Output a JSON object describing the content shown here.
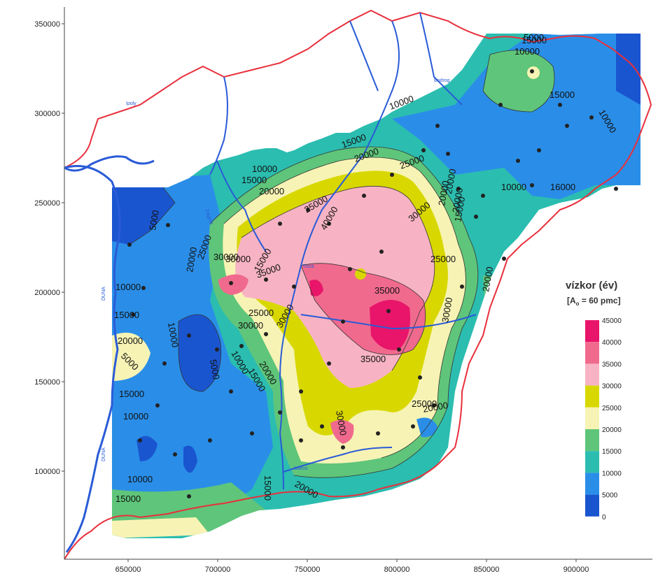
{
  "legend": {
    "title": "vízkor (év)",
    "subtitle_prefix": "[A",
    "subtitle_sub": "o",
    "subtitle_suffix": " = 60 pmc]",
    "classes": [
      {
        "value": "45000",
        "color": "#e8156a"
      },
      {
        "value": "40000",
        "color": "#f06a8e"
      },
      {
        "value": "35000",
        "color": "#f7b3c3"
      },
      {
        "value": "30000",
        "color": "#d8d800"
      },
      {
        "value": "25000",
        "color": "#f7f3b4"
      },
      {
        "value": "20000",
        "color": "#5fc57a"
      },
      {
        "value": "15000",
        "color": "#2bbdb0"
      },
      {
        "value": "10000",
        "color": "#2a8ee8"
      },
      {
        "value": "5000",
        "color": "#1a55d0"
      },
      {
        "value": "0",
        "color": ""
      }
    ]
  },
  "axes": {
    "x_ticks": [
      "650000",
      "700000",
      "750000",
      "800000",
      "850000",
      "900000"
    ],
    "y_ticks": [
      "350000",
      "300000",
      "250000",
      "200000",
      "150000",
      "100000"
    ]
  },
  "contour_labels": [
    "10000",
    "15000",
    "5000",
    "15000",
    "10000",
    "15000",
    "20000",
    "20000",
    "25000",
    "30000",
    "10000",
    "15000",
    "20000",
    "25000",
    "30000",
    "35000",
    "40000",
    "30000",
    "25000",
    "30000",
    "35000",
    "35000",
    "25000",
    "20000",
    "10000",
    "15000",
    "20000",
    "25000",
    "5000",
    "10000",
    "5000",
    "10000",
    "15000",
    "10000",
    "15000",
    "20000",
    "20000",
    "30000",
    "25000",
    "20000",
    "15000",
    "10000",
    "15000",
    "20000",
    "20000",
    "16000",
    "10000",
    "15000",
    "10000",
    "15000",
    "30000",
    "20000",
    "5000",
    "30000"
  ],
  "river_labels": [
    "Ipoly",
    "Bodrog",
    "DUNA",
    "DUNA",
    "Tisza",
    "Maros",
    "Zagyva"
  ],
  "colors": {
    "border": "#e8303c",
    "river": "#2a5bd7",
    "point": "#222222",
    "contour_line": "#333333"
  }
}
